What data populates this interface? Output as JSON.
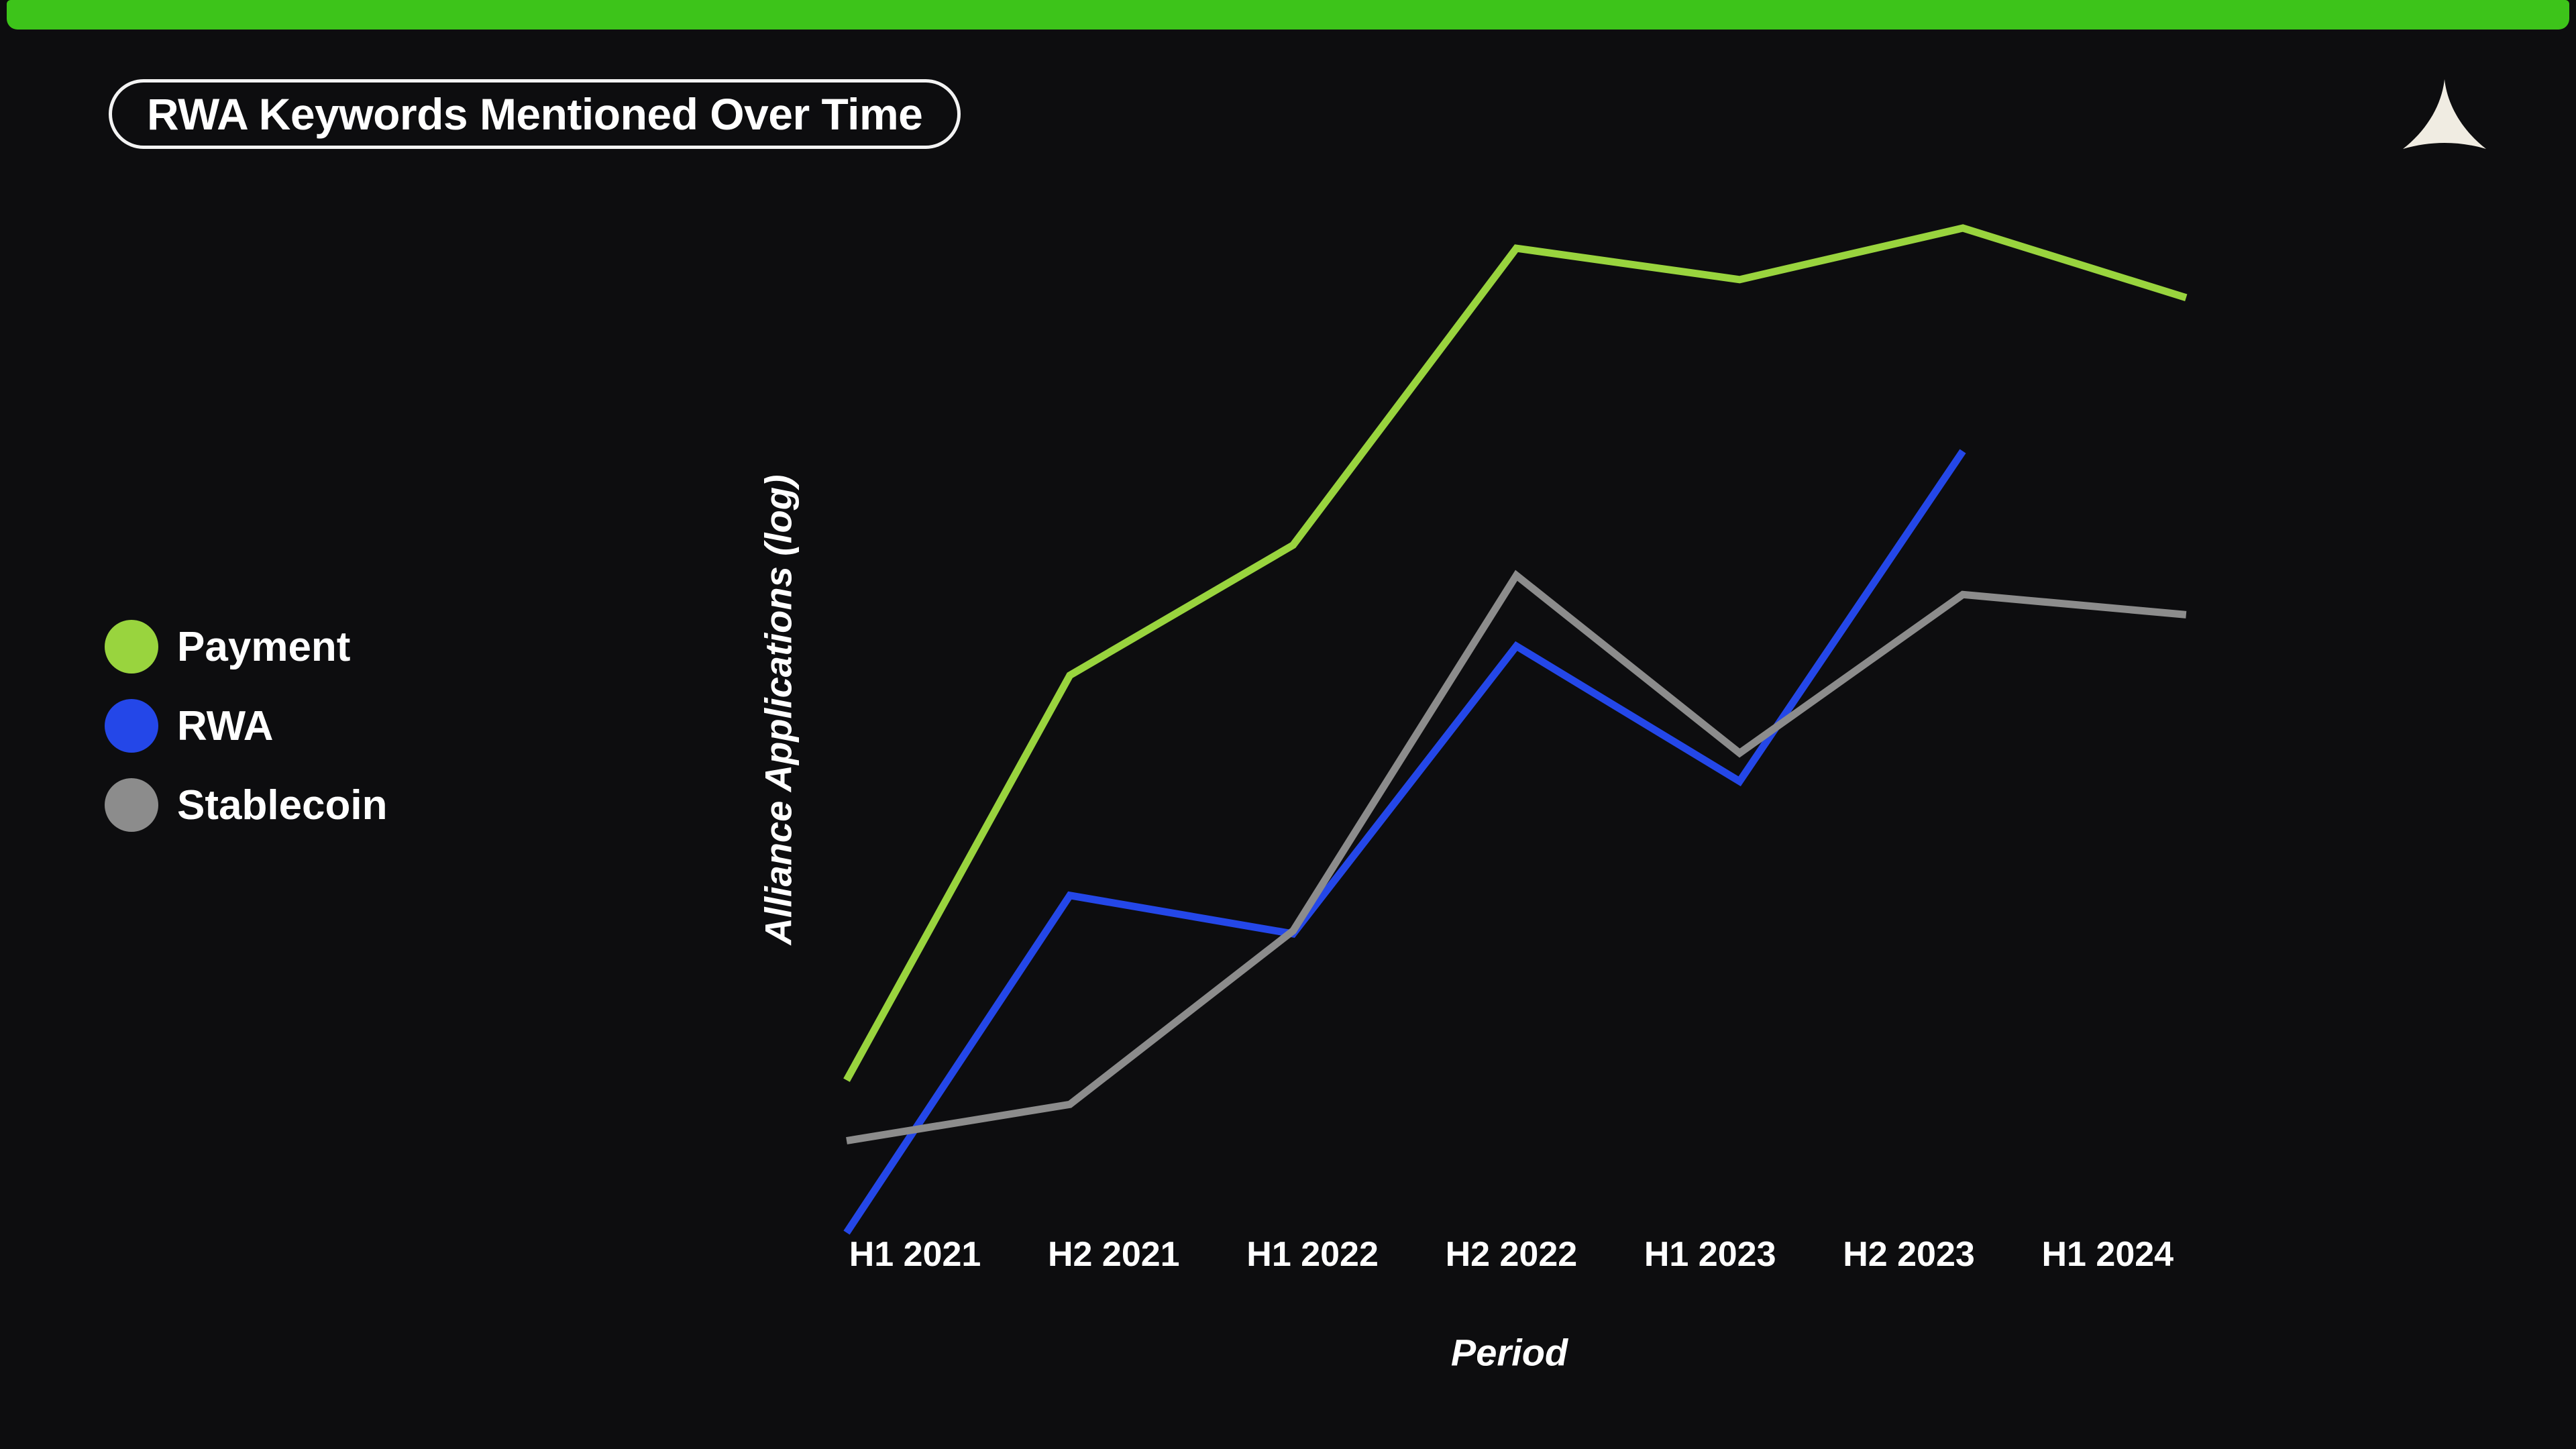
{
  "page": {
    "background_color": "#0d0d0f",
    "top_bar_color": "#3dc41a"
  },
  "header": {
    "title": "RWA Keywords Mentioned Over Time",
    "logo_color": "#f0ece2"
  },
  "chart_data": {
    "type": "line",
    "title": "RWA Keywords Mentioned Over Time",
    "xlabel": "Period",
    "ylabel": "Alliance Applications (log)",
    "x_categories": [
      "H1 2021",
      "H2 2021",
      "H1 2022",
      "H2 2022",
      "H1 2023",
      "H2 2023",
      "H1 2024"
    ],
    "y_axis": {
      "scale": "log",
      "tick_labels_visible": false
    },
    "grid": false,
    "axis_spines_visible": false,
    "legend_position": "left",
    "series": [
      {
        "name": "Payment",
        "color": "#99d43e",
        "y_frac": [
          0.156,
          0.557,
          0.686,
          0.98,
          0.949,
          1.0,
          0.931
        ]
      },
      {
        "name": "RWA",
        "color": "#2447e8",
        "y_frac": [
          0.005,
          0.339,
          0.301,
          0.586,
          0.452,
          0.779
        ]
      },
      {
        "name": "Stablecoin",
        "color": "#8c8c8c",
        "y_frac": [
          0.096,
          0.132,
          0.304,
          0.656,
          0.48,
          0.637,
          0.617
        ]
      }
    ],
    "note": "Log-scaled y axis has no numeric tick labels; y_frac is each point's estimated height as a fraction of the plot area (0 = bottom, 1 = top). RWA series ends at H2 2023."
  }
}
